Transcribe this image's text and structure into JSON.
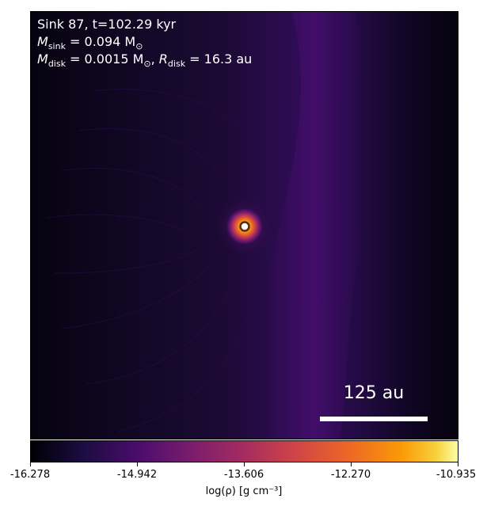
{
  "annotation": {
    "line1": "Sink 87, t=102.29 kyr",
    "line2_label": "M",
    "line2_sub": "sink",
    "line2_value": " = 0.094 M",
    "line2_unit_sub": "⊙",
    "line3_label": "M",
    "line3_sub": "disk",
    "line3_value": " = 0.0015 M",
    "line3_unit_sub": "⊙",
    "line3_sep": ", ",
    "line3_r_label": "R",
    "line3_r_sub": "disk",
    "line3_r_value": " = 16.3 au"
  },
  "scalebar": {
    "label": "125 au"
  },
  "colorbar": {
    "label": "log(ρ) [g cm⁻³]",
    "ticks": [
      "-16.278",
      "-14.942",
      "-13.606",
      "-12.270",
      "-10.935"
    ],
    "colormap": "inferno"
  },
  "colors": {
    "background": "#ffffff",
    "text_on_map": "#ffffff"
  },
  "sink": {
    "name": "sink-marker"
  }
}
